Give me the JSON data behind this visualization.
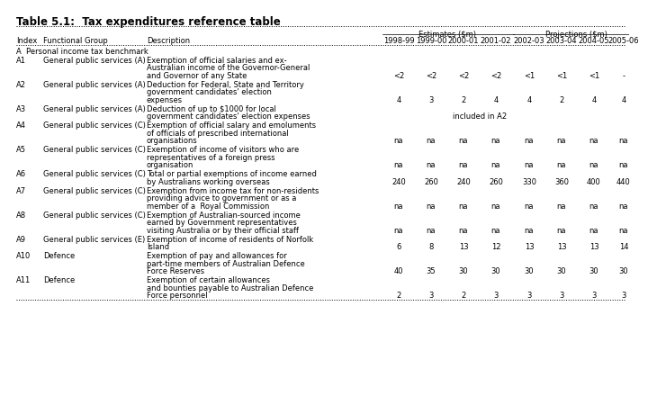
{
  "title": "Table 5.1:  Tax expenditures reference table",
  "section_header": "A  Personal income tax benchmark",
  "col_headers": [
    "Index",
    "Functional Group",
    "Description",
    "1998-99",
    "1999-00",
    "2000-01",
    "2001-02",
    "2002-03",
    "2003-04",
    "2004-05",
    "2005-06"
  ],
  "estimates_label": "Estimates ($m)",
  "projections_label": "Projections ($m)",
  "rows": [
    {
      "index": "A1",
      "group": "General public services (A)",
      "description": "Exemption of official salaries and ex-\nAustralian income of the Governor-General\nand Governor of any State",
      "values": [
        "<2",
        "<2",
        "<2",
        "<2",
        "<1",
        "<1",
        "<1",
        "-"
      ]
    },
    {
      "index": "A2",
      "group": "General public services (A)",
      "description": "Deduction for Federal, State and Territory\ngovernment candidates' election\nexpenses",
      "values": [
        "4",
        "3",
        "2",
        "4",
        "4",
        "2",
        "4",
        "4"
      ]
    },
    {
      "index": "A3",
      "group": "General public services (A)",
      "description": "Deduction of up to $1000 for local\ngovernment candidates' election expenses",
      "values": [
        "",
        "",
        "",
        "included in A2",
        "",
        "",
        "",
        ""
      ],
      "special": "included_in_a2"
    },
    {
      "index": "A4",
      "group": "General public services (C)",
      "description": "Exemption of official salary and emoluments\nof officials of prescribed international\norganisations",
      "values": [
        "na",
        "na",
        "na",
        "na",
        "na",
        "na",
        "na",
        "na"
      ]
    },
    {
      "index": "A5",
      "group": "General public services (C)",
      "description": "Exemption of income of visitors who are\nrepresentatives of a foreign press\norganisation",
      "values": [
        "na",
        "na",
        "na",
        "na",
        "na",
        "na",
        "na",
        "na"
      ]
    },
    {
      "index": "A6",
      "group": "General public services (C)",
      "description": "Total or partial exemptions of income earned\nby Australians working overseas",
      "values": [
        "240",
        "260",
        "240",
        "260",
        "330",
        "360",
        "400",
        "440"
      ]
    },
    {
      "index": "A7",
      "group": "General public services (C)",
      "description": "Exemption from income tax for non-residents\nproviding advice to government or as a\nmember of a  Royal Commission",
      "values": [
        "na",
        "na",
        "na",
        "na",
        "na",
        "na",
        "na",
        "na"
      ]
    },
    {
      "index": "A8",
      "group": "General public services (C)",
      "description": "Exemption of Australian-sourced income\nearned by Government representatives\nvisiting Australia or by their official staff",
      "values": [
        "na",
        "na",
        "na",
        "na",
        "na",
        "na",
        "na",
        "na"
      ]
    },
    {
      "index": "A9",
      "group": "General public services (E)",
      "description": "Exemption of income of residents of Norfolk\nIsland",
      "values": [
        "6",
        "8",
        "13",
        "12",
        "13",
        "13",
        "13",
        "14"
      ]
    },
    {
      "index": "A10",
      "group": "Defence",
      "description": "Exemption of pay and allowances for\npart-time members of Australian Defence\nForce Reserves",
      "values": [
        "40",
        "35",
        "30",
        "30",
        "30",
        "30",
        "30",
        "30"
      ]
    },
    {
      "index": "A11",
      "group": "Defence",
      "description": "Exemption of certain allowances\nand bounties payable to Australian Defence\nForce personnel",
      "values": [
        "2",
        "3",
        "2",
        "3",
        "3",
        "3",
        "3",
        "3"
      ]
    }
  ],
  "bg_color": "#ffffff",
  "title_fontsize": 8.5,
  "table_fontsize": 6.0
}
